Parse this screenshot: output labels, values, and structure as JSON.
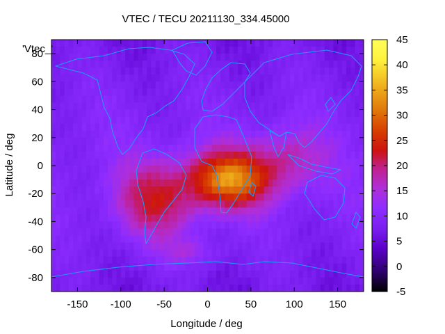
{
  "chart_data": {
    "type": "heatmap",
    "title": "VTEC / TECU 20211130_334.45000",
    "xlabel": "Longitude / deg",
    "ylabel": "Latitude / deg",
    "xlim": [
      -180,
      180
    ],
    "ylim": [
      -90,
      90
    ],
    "xticks": [
      -150,
      -100,
      -50,
      0,
      50,
      100,
      150
    ],
    "yticks": [
      -80,
      -60,
      -40,
      -20,
      0,
      20,
      40,
      60,
      80
    ],
    "colorbar": {
      "range": [
        -5,
        45
      ],
      "ticks": [
        -5,
        0,
        5,
        10,
        15,
        20,
        25,
        30,
        35,
        40,
        45
      ],
      "colormap": [
        "#000000",
        "#2e006e",
        "#5a00c8",
        "#7a1ef0",
        "#8e2dff",
        "#b02ed8",
        "#c0208c",
        "#cc1410",
        "#d63a00",
        "#e0780a",
        "#f0b31e",
        "#fff23c",
        "#ffff5a"
      ]
    },
    "legend_key": "'Vtec_'",
    "peak": {
      "lon": 25,
      "lat": -10,
      "value": 39
    },
    "coastline_color": "#1e9bff"
  }
}
